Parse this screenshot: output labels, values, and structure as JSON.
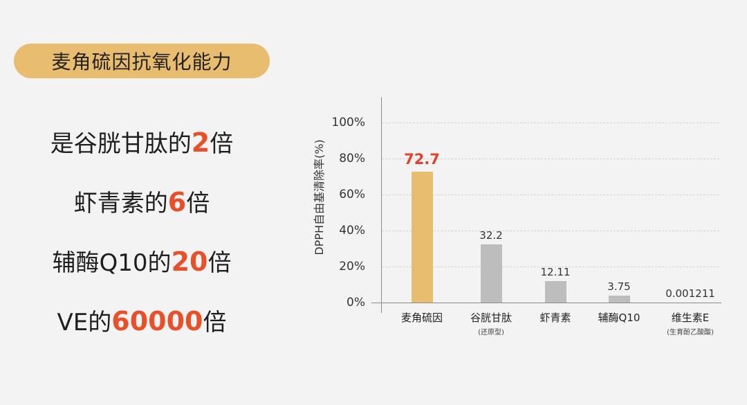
{
  "title": "麦角硫因抗氧化能力",
  "claims": [
    {
      "prefix": "是谷胱甘肽的",
      "num": "2",
      "suffix": "倍"
    },
    {
      "prefix": "虾青素的",
      "num": "6",
      "suffix": "倍"
    },
    {
      "prefix": "辅酶Q10的",
      "num": "20",
      "suffix": "倍"
    },
    {
      "prefix": "VE的",
      "num": "60000",
      "suffix": "倍"
    }
  ],
  "colors": {
    "highlight_bar": "#e8bd6f",
    "other_bar": "#bdbdbd",
    "accent_text": "#e8502a",
    "pill_bg": "#e8bd6f",
    "background": "#f3f3f3"
  },
  "chart_data": {
    "type": "bar",
    "title": "",
    "xlabel": "",
    "ylabel": "DPPH自由基清除率(%)",
    "ylim": [
      0,
      100
    ],
    "yticks": [
      "0%",
      "20%",
      "40%",
      "60%",
      "80%",
      "100%"
    ],
    "grid": true,
    "categories": [
      "麦角硫因",
      "谷胱甘肽",
      "虾青素",
      "辅酶Q10",
      "维生素E"
    ],
    "category_sublabels": [
      "",
      "(还原型)",
      "",
      "",
      "(生育酚乙酸酯)"
    ],
    "values": [
      72.7,
      32.2,
      12.11,
      3.75,
      0.001211
    ],
    "value_labels": [
      "72.7",
      "32.2",
      "12.11",
      "3.75",
      "0.001211"
    ],
    "highlight_index": 0
  }
}
